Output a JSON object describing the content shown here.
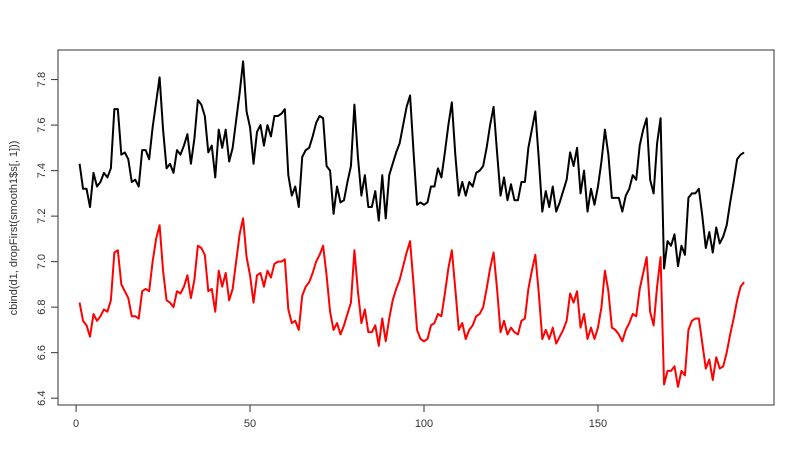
{
  "chart_data": {
    "type": "line",
    "y_label": "cbind(d1, dropFirst(smooth1$s[, 1]))",
    "x": [
      1,
      2,
      3,
      4,
      5,
      6,
      7,
      8,
      9,
      10,
      11,
      12,
      13,
      14,
      15,
      16,
      17,
      18,
      19,
      20,
      21,
      22,
      23,
      24,
      25,
      26,
      27,
      28,
      29,
      30,
      31,
      32,
      33,
      34,
      35,
      36,
      37,
      38,
      39,
      40,
      41,
      42,
      43,
      44,
      45,
      46,
      47,
      48,
      49,
      50,
      51,
      52,
      53,
      54,
      55,
      56,
      57,
      58,
      59,
      60,
      61,
      62,
      63,
      64,
      65,
      66,
      67,
      68,
      69,
      70,
      71,
      72,
      73,
      74,
      75,
      76,
      77,
      78,
      79,
      80,
      81,
      82,
      83,
      84,
      85,
      86,
      87,
      88,
      89,
      90,
      91,
      92,
      93,
      94,
      95,
      96,
      97,
      98,
      99,
      100,
      101,
      102,
      103,
      104,
      105,
      106,
      107,
      108,
      109,
      110,
      111,
      112,
      113,
      114,
      115,
      116,
      117,
      118,
      119,
      120,
      121,
      122,
      123,
      124,
      125,
      126,
      127,
      128,
      129,
      130,
      131,
      132,
      133,
      134,
      135,
      136,
      137,
      138,
      139,
      140,
      141,
      142,
      143,
      144,
      145,
      146,
      147,
      148,
      149,
      150,
      151,
      152,
      153,
      154,
      155,
      156,
      157,
      158,
      159,
      160,
      161,
      162,
      163,
      164,
      165,
      166,
      167,
      168,
      169,
      170,
      171,
      172,
      173,
      174,
      175,
      176,
      177,
      178,
      179,
      180,
      181,
      182,
      183,
      184,
      185,
      186,
      187,
      188,
      189,
      190,
      191,
      192
    ],
    "series": [
      {
        "color": "#000000",
        "values": [
          7.43,
          7.32,
          7.32,
          7.24,
          7.39,
          7.33,
          7.35,
          7.39,
          7.37,
          7.41,
          7.67,
          7.67,
          7.47,
          7.48,
          7.45,
          7.35,
          7.36,
          7.33,
          7.49,
          7.49,
          7.45,
          7.59,
          7.7,
          7.81,
          7.58,
          7.41,
          7.43,
          7.39,
          7.49,
          7.47,
          7.51,
          7.56,
          7.43,
          7.54,
          7.71,
          7.69,
          7.64,
          7.48,
          7.51,
          7.37,
          7.58,
          7.5,
          7.58,
          7.44,
          7.5,
          7.62,
          7.74,
          7.88,
          7.66,
          7.59,
          7.43,
          7.57,
          7.6,
          7.51,
          7.6,
          7.55,
          7.64,
          7.64,
          7.65,
          7.67,
          7.38,
          7.29,
          7.33,
          7.24,
          7.46,
          7.49,
          7.5,
          7.55,
          7.61,
          7.64,
          7.63,
          7.42,
          7.4,
          7.21,
          7.33,
          7.26,
          7.27,
          7.35,
          7.42,
          7.69,
          7.46,
          7.29,
          7.38,
          7.24,
          7.24,
          7.31,
          7.18,
          7.38,
          7.19,
          7.38,
          7.43,
          7.48,
          7.52,
          7.6,
          7.68,
          7.73,
          7.48,
          7.25,
          7.26,
          7.25,
          7.26,
          7.33,
          7.33,
          7.41,
          7.37,
          7.48,
          7.6,
          7.7,
          7.47,
          7.29,
          7.35,
          7.29,
          7.35,
          7.33,
          7.39,
          7.4,
          7.42,
          7.5,
          7.6,
          7.68,
          7.48,
          7.29,
          7.37,
          7.27,
          7.34,
          7.27,
          7.27,
          7.35,
          7.35,
          7.5,
          7.58,
          7.66,
          7.45,
          7.22,
          7.31,
          7.24,
          7.33,
          7.22,
          7.26,
          7.31,
          7.36,
          7.48,
          7.42,
          7.5,
          7.3,
          7.4,
          7.22,
          7.32,
          7.25,
          7.33,
          7.44,
          7.58,
          7.47,
          7.28,
          7.28,
          7.28,
          7.22,
          7.29,
          7.32,
          7.38,
          7.36,
          7.51,
          7.58,
          7.63,
          7.36,
          7.3,
          7.52,
          7.63,
          6.97,
          7.09,
          7.07,
          7.12,
          6.98,
          7.07,
          7.03,
          7.28,
          7.3,
          7.3,
          7.32,
          7.2,
          7.06,
          7.13,
          7.04,
          7.15,
          7.08,
          7.11,
          7.16,
          7.26,
          7.35,
          7.45,
          7.47,
          7.48
        ]
      },
      {
        "color": "#ff0000",
        "values": [
          6.82,
          6.74,
          6.72,
          6.67,
          6.77,
          6.74,
          6.76,
          6.79,
          6.78,
          6.83,
          7.04,
          7.05,
          6.9,
          6.87,
          6.84,
          6.76,
          6.76,
          6.75,
          6.87,
          6.88,
          6.87,
          7.0,
          7.1,
          7.16,
          6.96,
          6.83,
          6.82,
          6.8,
          6.87,
          6.86,
          6.89,
          6.94,
          6.84,
          6.92,
          7.07,
          7.06,
          7.03,
          6.87,
          6.88,
          6.78,
          6.96,
          6.89,
          6.95,
          6.83,
          6.88,
          7.0,
          7.12,
          7.19,
          7.02,
          6.94,
          6.82,
          6.94,
          6.95,
          6.89,
          6.96,
          6.93,
          6.99,
          7.0,
          7.0,
          7.01,
          6.79,
          6.73,
          6.74,
          6.7,
          6.85,
          6.89,
          6.91,
          6.95,
          7.0,
          7.03,
          7.07,
          6.94,
          6.78,
          6.7,
          6.73,
          6.68,
          6.72,
          6.77,
          6.82,
          7.05,
          6.87,
          6.73,
          6.79,
          6.69,
          6.69,
          6.72,
          6.63,
          6.75,
          6.65,
          6.75,
          6.83,
          6.88,
          6.92,
          6.98,
          7.04,
          7.09,
          6.9,
          6.7,
          6.66,
          6.65,
          6.66,
          6.72,
          6.73,
          6.77,
          6.76,
          6.86,
          6.97,
          7.05,
          6.88,
          6.7,
          6.73,
          6.66,
          6.7,
          6.72,
          6.76,
          6.77,
          6.8,
          6.88,
          6.97,
          7.04,
          6.88,
          6.69,
          6.74,
          6.68,
          6.71,
          6.69,
          6.68,
          6.74,
          6.75,
          6.88,
          6.96,
          7.03,
          6.86,
          6.66,
          6.7,
          6.66,
          6.71,
          6.64,
          6.67,
          6.7,
          6.74,
          6.86,
          6.82,
          6.87,
          6.71,
          6.77,
          6.66,
          6.71,
          6.66,
          6.71,
          6.8,
          6.96,
          6.87,
          6.71,
          6.7,
          6.68,
          6.65,
          6.7,
          6.73,
          6.77,
          6.76,
          6.88,
          6.95,
          7.02,
          6.78,
          6.72,
          6.89,
          7.02,
          6.46,
          6.52,
          6.52,
          6.54,
          6.45,
          6.52,
          6.5,
          6.7,
          6.74,
          6.75,
          6.75,
          6.64,
          6.53,
          6.57,
          6.48,
          6.58,
          6.53,
          6.54,
          6.6,
          6.68,
          6.75,
          6.83,
          6.89,
          6.91
        ]
      }
    ],
    "xlim": [
      -5.2,
      200.6
    ],
    "xticks": [
      0,
      50,
      100,
      150
    ],
    "ylim": [
      6.37,
      7.93
    ],
    "yticks": [
      6.4,
      6.6,
      6.8,
      {
        "value": 7,
        "label": "7.0"
      },
      7.2,
      7.4,
      7.6,
      7.8
    ]
  }
}
